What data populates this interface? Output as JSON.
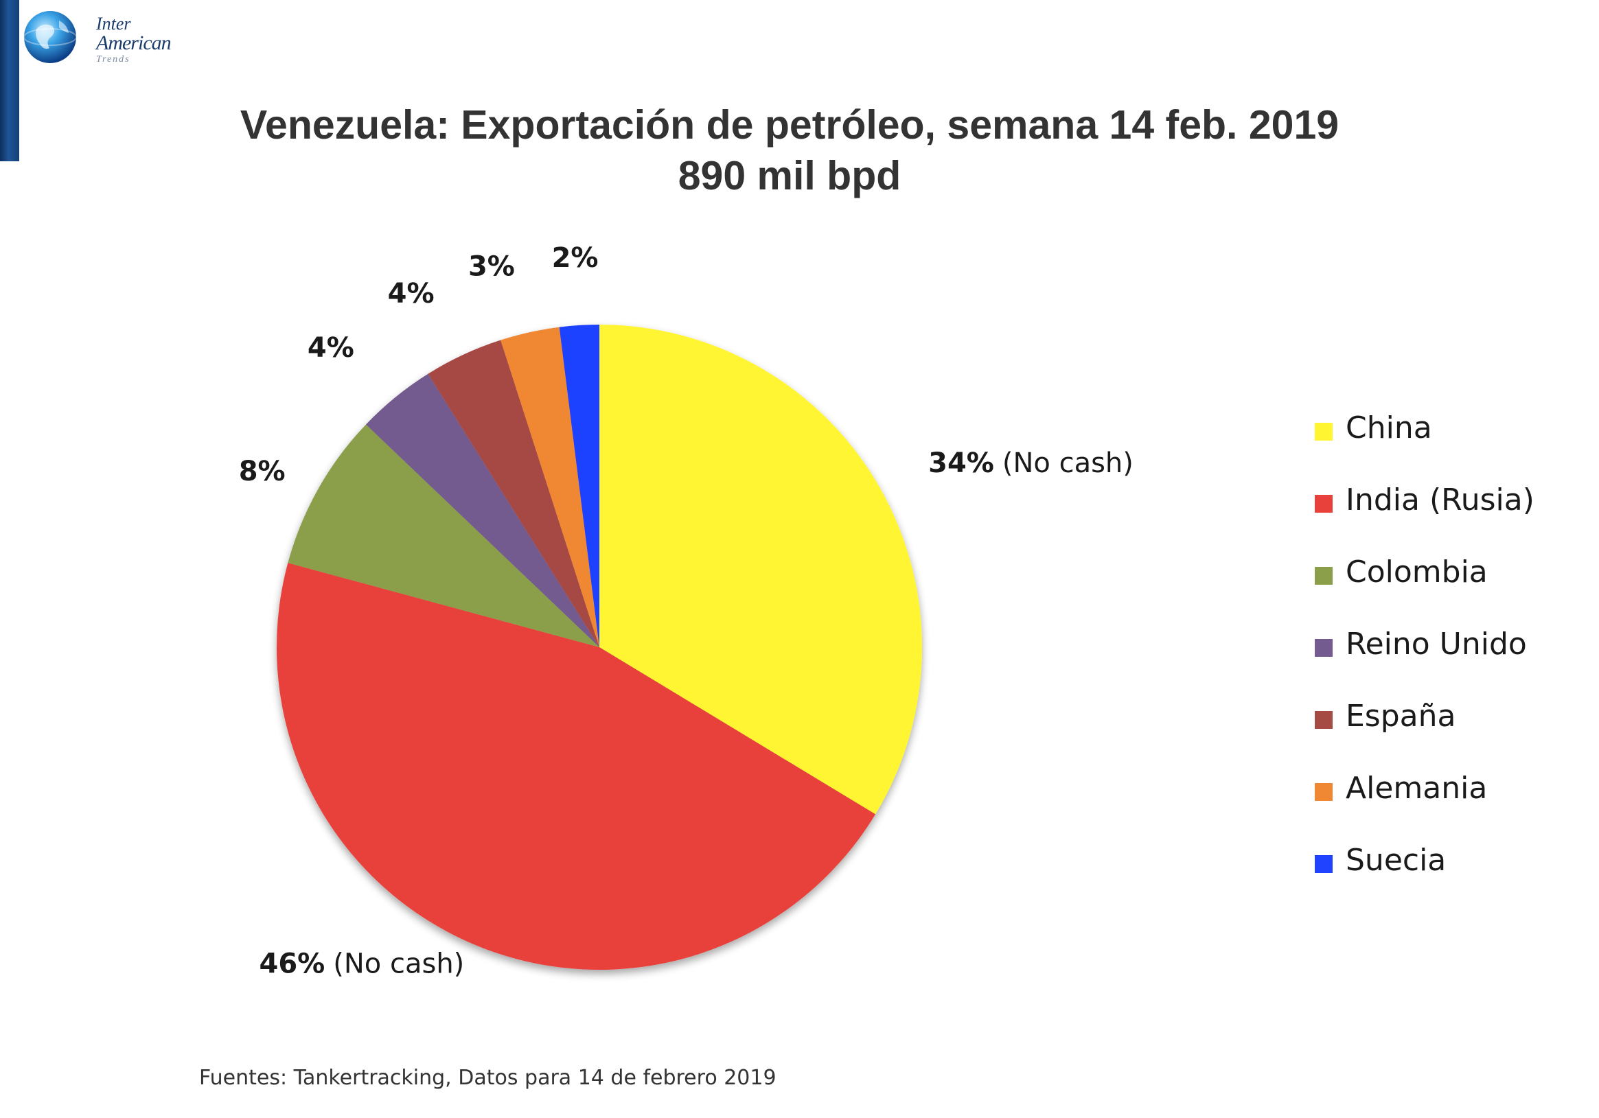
{
  "logo": {
    "line1": "Inter",
    "line2": "American",
    "line3": "Trends"
  },
  "title": "Venezuela: Exportación de petróleo, semana 14 feb. 2019",
  "subtitle": "890 mil bpd",
  "footer": "Fuentes: Tankertracking,  Datos para 14 de febrero 2019",
  "chart_data": {
    "type": "pie",
    "title": "Venezuela: Exportación de petróleo, semana 14 feb. 2019",
    "subtitle": "890 mil bpd",
    "legend_position": "right",
    "slices": [
      {
        "label": "China",
        "value": 34,
        "display": "34%",
        "note": "(No cash)",
        "color": "#fff531"
      },
      {
        "label": "India (Rusia)",
        "value": 46,
        "display": "46%",
        "note": "(No cash)",
        "color": "#e8403a"
      },
      {
        "label": "Colombia",
        "value": 8,
        "display": "8%",
        "note": "",
        "color": "#8b9e49"
      },
      {
        "label": "Reino Unido",
        "value": 4,
        "display": "4%",
        "note": "",
        "color": "#735a8f"
      },
      {
        "label": "España",
        "value": 4,
        "display": "4%",
        "note": "",
        "color": "#a64a44"
      },
      {
        "label": "Alemania",
        "value": 3,
        "display": "3%",
        "note": "",
        "color": "#f08732"
      },
      {
        "label": "Suecia",
        "value": 2,
        "display": "2%",
        "note": "",
        "color": "#1f43ff"
      }
    ]
  }
}
